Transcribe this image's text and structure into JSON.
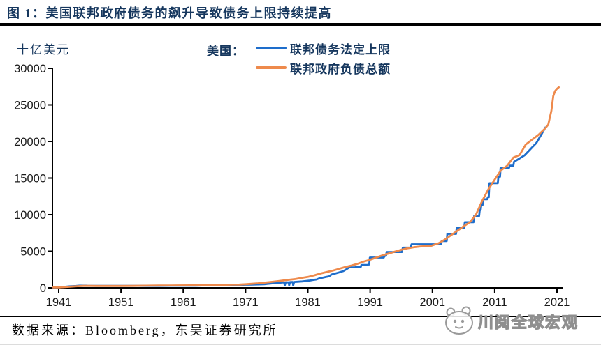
{
  "header": {
    "title": "图 1：美国联邦政府债务的飙升导致债务上限持续提高"
  },
  "chart": {
    "unit_label": "十亿美元",
    "legend": {
      "region_label": "美国："
    }
  },
  "chart_data": {
    "type": "line",
    "title": "图 1：美国联邦政府债务的飙升导致债务上限持续提高",
    "xlabel": "",
    "ylabel": "十亿美元",
    "xlim": [
      1941,
      2022
    ],
    "ylim": [
      0,
      30000
    ],
    "x_ticks": [
      1941,
      1951,
      1961,
      1971,
      1981,
      1991,
      2001,
      2011,
      2021
    ],
    "y_ticks": [
      0,
      5000,
      10000,
      15000,
      20000,
      25000,
      30000
    ],
    "grid": false,
    "legend_position": "top-center",
    "axis_color": "#000000",
    "tick_label_color": "#1a1a1a",
    "series": [
      {
        "name": "联邦债务法定上限",
        "color": "#1e6dcb",
        "points": [
          [
            1940,
            49
          ],
          [
            1941,
            65
          ],
          [
            1941.8,
            125
          ],
          [
            1942.8,
            210
          ],
          [
            1943.8,
            260
          ],
          [
            1944.3,
            300
          ],
          [
            1945.4,
            300
          ],
          [
            1945.7,
            275
          ],
          [
            1954,
            275
          ],
          [
            1954.8,
            281
          ],
          [
            1956,
            278
          ],
          [
            1957,
            275
          ],
          [
            1958,
            288
          ],
          [
            1959,
            295
          ],
          [
            1960,
            293
          ],
          [
            1961,
            298
          ],
          [
            1962,
            308
          ],
          [
            1963,
            309
          ],
          [
            1964,
            324
          ],
          [
            1965,
            328
          ],
          [
            1966,
            330
          ],
          [
            1967,
            336
          ],
          [
            1968,
            365
          ],
          [
            1969,
            377
          ],
          [
            1970,
            395
          ],
          [
            1971,
            430
          ],
          [
            1972,
            450
          ],
          [
            1973,
            465
          ],
          [
            1974,
            495
          ],
          [
            1975,
            577
          ],
          [
            1976,
            682
          ],
          [
            1976.6,
            700
          ],
          [
            1977.2,
            752
          ],
          [
            1977.3,
            320
          ],
          [
            1977.45,
            752
          ],
          [
            1977.9,
            752
          ],
          [
            1978,
            330
          ],
          [
            1978.15,
            782
          ],
          [
            1978.55,
            798
          ],
          [
            1978.65,
            340
          ],
          [
            1978.8,
            798
          ],
          [
            1979.3,
            830
          ],
          [
            1980.1,
            879
          ],
          [
            1980.6,
            925
          ],
          [
            1981.2,
            985
          ],
          [
            1981.8,
            1079
          ],
          [
            1982.4,
            1143
          ],
          [
            1982.8,
            1290
          ],
          [
            1983.4,
            1389
          ],
          [
            1983.9,
            1490
          ],
          [
            1984.4,
            1573
          ],
          [
            1984.8,
            1823
          ],
          [
            1985.9,
            2079
          ],
          [
            1986.7,
            2300
          ],
          [
            1987.7,
            2800
          ],
          [
            1988.6,
            2800
          ],
          [
            1988.7,
            2870
          ],
          [
            1989.5,
            2870
          ],
          [
            1989.6,
            3123
          ],
          [
            1990.6,
            3123
          ],
          [
            1990.7,
            3195
          ],
          [
            1990.85,
            3195
          ],
          [
            1990.95,
            4145
          ],
          [
            1993.2,
            4145
          ],
          [
            1993.3,
            4370
          ],
          [
            1993.55,
            4370
          ],
          [
            1993.65,
            4900
          ],
          [
            1996.1,
            4900
          ],
          [
            1996.25,
            5500
          ],
          [
            1997.5,
            5500
          ],
          [
            1997.65,
            5950
          ],
          [
            2002.4,
            5950
          ],
          [
            2002.5,
            6400
          ],
          [
            2003.3,
            6400
          ],
          [
            2003.4,
            7384
          ],
          [
            2004.8,
            7384
          ],
          [
            2004.9,
            8184
          ],
          [
            2006.1,
            8184
          ],
          [
            2006.2,
            8965
          ],
          [
            2007.6,
            8965
          ],
          [
            2007.7,
            9815
          ],
          [
            2008.5,
            9815
          ],
          [
            2008.6,
            10615
          ],
          [
            2008.75,
            10615
          ],
          [
            2008.85,
            11315
          ],
          [
            2009.05,
            11315
          ],
          [
            2009.15,
            12104
          ],
          [
            2009.8,
            12104
          ],
          [
            2009.9,
            12394
          ],
          [
            2010.05,
            12394
          ],
          [
            2010.15,
            14294
          ],
          [
            2011.5,
            14294
          ],
          [
            2011.6,
            15194
          ],
          [
            2011.85,
            15194
          ],
          [
            2011.95,
            16394
          ],
          [
            2013.3,
            16394
          ],
          [
            2013.4,
            16699
          ],
          [
            2014.0,
            16699
          ],
          [
            2014.1,
            17212
          ],
          [
            2015.8,
            18113
          ],
          [
            2017.7,
            19809
          ],
          [
            2019.2,
            21988
          ]
        ]
      },
      {
        "name": "联邦政府负债总额",
        "color": "#ee8a4c",
        "points": [
          [
            1940,
            55
          ],
          [
            1941,
            58
          ],
          [
            1942,
            100
          ],
          [
            1943,
            170
          ],
          [
            1944,
            230
          ],
          [
            1945,
            270
          ],
          [
            1946,
            271
          ],
          [
            1947,
            258
          ],
          [
            1949,
            255
          ],
          [
            1951,
            257
          ],
          [
            1953,
            270
          ],
          [
            1955,
            300
          ],
          [
            1957,
            310
          ],
          [
            1959,
            325
          ],
          [
            1960,
            330
          ],
          [
            1962,
            345
          ],
          [
            1964,
            365
          ],
          [
            1965,
            380
          ],
          [
            1966,
            395
          ],
          [
            1967,
            405
          ],
          [
            1968,
            420
          ],
          [
            1969,
            435
          ],
          [
            1970,
            450
          ],
          [
            1971,
            500
          ],
          [
            1972,
            550
          ],
          [
            1973,
            620
          ],
          [
            1974,
            700
          ],
          [
            1975,
            800
          ],
          [
            1976,
            900
          ],
          [
            1977,
            1000
          ],
          [
            1978,
            1100
          ],
          [
            1979,
            1200
          ],
          [
            1980,
            1350
          ],
          [
            1981,
            1500
          ],
          [
            1982,
            1700
          ],
          [
            1983,
            1950
          ],
          [
            1984,
            2150
          ],
          [
            1985,
            2350
          ],
          [
            1986,
            2600
          ],
          [
            1987,
            2850
          ],
          [
            1988,
            3050
          ],
          [
            1989,
            3300
          ],
          [
            1990,
            3600
          ],
          [
            1991,
            3840
          ],
          [
            1992,
            4150
          ],
          [
            1993,
            4450
          ],
          [
            1994,
            4700
          ],
          [
            1995,
            4950
          ],
          [
            1996,
            5200
          ],
          [
            1997,
            5400
          ],
          [
            1998,
            5550
          ],
          [
            1999,
            5650
          ],
          [
            2000,
            5700
          ],
          [
            2000.5,
            5680
          ],
          [
            2001,
            5800
          ],
          [
            2002,
            6100
          ],
          [
            2003,
            6600
          ],
          [
            2004,
            7200
          ],
          [
            2005,
            7800
          ],
          [
            2006,
            8400
          ],
          [
            2007,
            8950
          ],
          [
            2008,
            10000
          ],
          [
            2009,
            11900
          ],
          [
            2010,
            13500
          ],
          [
            2011,
            14800
          ],
          [
            2012,
            16050
          ],
          [
            2013,
            16700
          ],
          [
            2014,
            17800
          ],
          [
            2015,
            18150
          ],
          [
            2016,
            19600
          ],
          [
            2017,
            20250
          ],
          [
            2018,
            20900
          ],
          [
            2019,
            21700
          ],
          [
            2019.6,
            22300
          ],
          [
            2020.1,
            24200
          ],
          [
            2020.4,
            26200
          ],
          [
            2020.7,
            26900
          ],
          [
            2021,
            27200
          ],
          [
            2021.4,
            27500
          ]
        ]
      }
    ]
  },
  "footer": {
    "source": "数据来源：Bloomberg，东吴证券研究所",
    "watermark": "川阅全球宏观"
  }
}
